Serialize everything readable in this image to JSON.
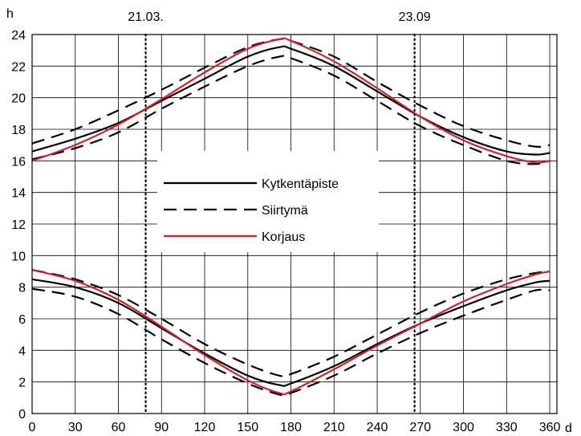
{
  "chart_data": {
    "type": "line",
    "xlabel": "d",
    "ylabel": "h",
    "xlim": [
      0,
      365
    ],
    "ylim": [
      0,
      24
    ],
    "x_ticks": [
      0,
      30,
      60,
      90,
      120,
      150,
      180,
      210,
      240,
      270,
      300,
      330,
      360
    ],
    "y_ticks": [
      0,
      2,
      4,
      6,
      8,
      10,
      12,
      14,
      16,
      18,
      20,
      22,
      24
    ],
    "grid": true,
    "legend_position": "center-left",
    "vlines": [
      {
        "x": 79,
        "label": "21.03."
      },
      {
        "x": 266,
        "label": "23.09"
      }
    ],
    "series": [
      {
        "name": "Kytkentäpiste",
        "style": "solid",
        "color": "#000000",
        "curves": [
          {
            "x": [
              0,
              30,
              60,
              90,
              120,
              150,
              172,
              180,
              210,
              240,
              270,
              300,
              330,
              350,
              360
            ],
            "y": [
              16.6,
              17.4,
              18.4,
              19.8,
              21.2,
              22.6,
              23.2,
              23.1,
              22.0,
              20.4,
              18.8,
              17.5,
              16.6,
              16.4,
              16.5
            ]
          },
          {
            "x": [
              0,
              30,
              60,
              90,
              120,
              150,
              172,
              180,
              210,
              240,
              270,
              300,
              330,
              350,
              360
            ],
            "y": [
              8.5,
              8.0,
              7.0,
              5.4,
              3.8,
              2.4,
              1.8,
              1.9,
              3.0,
              4.4,
              5.7,
              6.8,
              7.8,
              8.3,
              8.4
            ]
          }
        ]
      },
      {
        "name": "Siirtymä",
        "style": "dashed",
        "color": "#000000",
        "curves": [
          {
            "x": [
              0,
              30,
              60,
              90,
              120,
              150,
              172,
              180,
              210,
              240,
              270,
              300,
              330,
              350,
              360
            ],
            "y": [
              17.1,
              18.0,
              19.2,
              20.5,
              21.9,
              23.2,
              23.7,
              23.6,
              22.6,
              21.0,
              19.5,
              18.2,
              17.3,
              16.9,
              17.0
            ]
          },
          {
            "x": [
              0,
              30,
              60,
              90,
              120,
              150,
              172,
              180,
              210,
              240,
              270,
              300,
              330,
              350,
              360
            ],
            "y": [
              16.1,
              16.8,
              17.8,
              19.3,
              20.7,
              22.0,
              22.6,
              22.5,
              21.4,
              19.8,
              18.2,
              17.0,
              16.0,
              15.8,
              16.0
            ]
          },
          {
            "x": [
              0,
              30,
              60,
              90,
              120,
              150,
              172,
              180,
              210,
              240,
              270,
              300,
              330,
              350,
              360
            ],
            "y": [
              9.1,
              8.5,
              7.5,
              6.0,
              4.4,
              3.1,
              2.4,
              2.5,
              3.6,
              5.0,
              6.4,
              7.6,
              8.5,
              8.9,
              9.0
            ]
          },
          {
            "x": [
              0,
              30,
              60,
              90,
              120,
              150,
              172,
              180,
              210,
              240,
              270,
              300,
              330,
              350,
              360
            ],
            "y": [
              7.9,
              7.4,
              6.3,
              4.7,
              3.2,
              1.9,
              1.2,
              1.3,
              2.4,
              3.8,
              5.1,
              6.2,
              7.2,
              7.8,
              7.8
            ]
          }
        ]
      },
      {
        "name": "Korjaus",
        "style": "solid",
        "color": "#d0212a",
        "curves": [
          {
            "x": [
              0,
              30,
              60,
              90,
              120,
              150,
              172,
              180,
              210,
              240,
              270,
              300,
              330,
              350,
              360
            ],
            "y": [
              16.0,
              17.0,
              18.3,
              19.9,
              21.6,
              23.1,
              23.7,
              23.6,
              22.3,
              20.6,
              18.8,
              17.3,
              16.3,
              15.9,
              16.0
            ]
          },
          {
            "x": [
              0,
              30,
              60,
              90,
              120,
              150,
              172,
              180,
              210,
              240,
              270,
              300,
              330,
              350,
              360
            ],
            "y": [
              9.1,
              8.4,
              7.2,
              5.5,
              3.7,
              2.1,
              1.3,
              1.4,
              2.8,
              4.3,
              5.7,
              7.1,
              8.2,
              8.8,
              9.0
            ]
          }
        ]
      }
    ]
  }
}
